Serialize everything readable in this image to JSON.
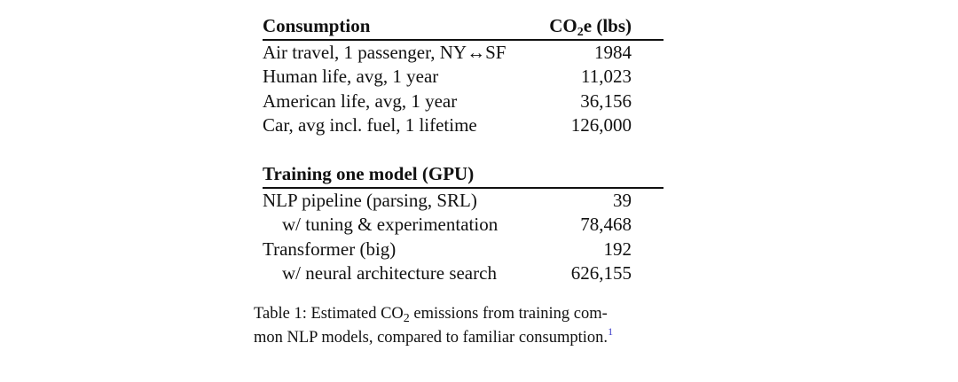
{
  "table": {
    "section1_header": "Consumption",
    "value_header_prefix": "CO",
    "value_header_sub": "2",
    "value_header_suffix": "e (lbs)",
    "consumption_rows": [
      {
        "label": "Air travel, 1 passenger, NY↔SF",
        "value": "1984"
      },
      {
        "label": "Human life, avg, 1 year",
        "value": "11,023"
      },
      {
        "label": "American life, avg, 1 year",
        "value": "36,156"
      },
      {
        "label": "Car, avg incl. fuel, 1 lifetime",
        "value": "126,000"
      }
    ],
    "section2_header": "Training one model (GPU)",
    "training_rows": [
      {
        "label": "NLP pipeline (parsing, SRL)",
        "value": "39"
      },
      {
        "label": "w/ tuning & experimentation",
        "value": "78,468"
      },
      {
        "label": "Transformer (big)",
        "value": "192"
      },
      {
        "label": "w/ neural architecture search",
        "value": "626,155"
      }
    ]
  },
  "caption": {
    "line1_prefix": "Table 1: Estimated CO",
    "line1_sub": "2",
    "line1_suffix": " emissions from training com-",
    "line2": "mon NLP models, compared to familiar consumption.",
    "footnote_marker": "1"
  }
}
